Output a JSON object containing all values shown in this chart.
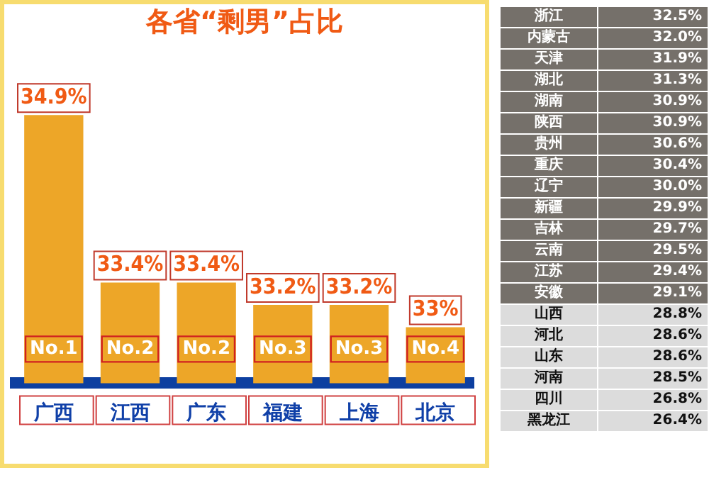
{
  "chart_data": [
    {
      "type": "bar",
      "title": "各省“剩男”占比",
      "categories": [
        "广西",
        "江西",
        "广东",
        "福建",
        "上海",
        "北京"
      ],
      "values": [
        34.9,
        33.4,
        33.4,
        33.2,
        33.2,
        33
      ],
      "value_labels": [
        "34.9%",
        "33.4%",
        "33.4%",
        "33.2%",
        "33.2%",
        "33%"
      ],
      "color": "#eda628",
      "tick_labels": "x",
      "grid": false,
      "legend": false,
      "annotations": [
        "No.1",
        "No.2",
        "No.2",
        "No.3",
        "No.3",
        "No.4"
      ]
    },
    {
      "type": "other",
      "categories": [
        "浙江",
        "内蒙古",
        "天津",
        "湖北",
        "湖南",
        "陕西",
        "贵州",
        "重庆",
        "辽宁",
        "新疆",
        "吉林",
        "云南",
        "江苏",
        "安徽",
        "山西",
        "河北",
        "山东",
        "河南",
        "四川",
        "黑龙江"
      ],
      "values": [
        32.5,
        32.0,
        31.9,
        31.3,
        30.9,
        30.9,
        30.6,
        30.4,
        30.0,
        29.9,
        29.7,
        29.5,
        29.4,
        29.1,
        28.8,
        28.6,
        28.6,
        28.5,
        26.8,
        26.4
      ],
      "value_labels": [
        "32.5%",
        "32.0%",
        "31.9%",
        "31.3%",
        "30.9%",
        "30.9%",
        "30.6%",
        "30.4%",
        "30.0%",
        "29.9%",
        "29.7%",
        "29.5%",
        "29.4%",
        "29.1%",
        "28.8%",
        "28.6%",
        "28.6%",
        "28.5%",
        "26.8%",
        "26.4%"
      ],
      "colors": [
        "#75706a",
        "#75706a",
        "#75706a",
        "#75706a",
        "#75706a",
        "#75706a",
        "#75706a",
        "#75706a",
        "#75706a",
        "#75706a",
        "#75706a",
        "#75706a",
        "#75706a",
        "#75706a",
        "#dcdcdc",
        "#dcdcdc",
        "#dcdcdc",
        "#dcdcdc",
        "#dcdcdc",
        "#dcdcdc"
      ]
    }
  ]
}
